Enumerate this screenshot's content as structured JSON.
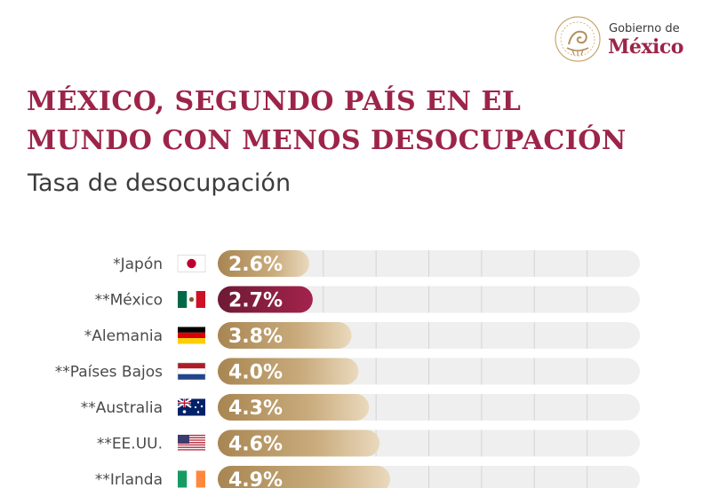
{
  "brand": {
    "line1": "Gobierno de",
    "line2": "México",
    "seal_text": "ESTADOS UNIDOS MEXICANOS",
    "primary_color": "#9d2449",
    "gold_color": "#b38e5d"
  },
  "title_lines": [
    "MÉXICO, SEGUNDO PAÍS EN EL",
    "MUNDO CON MENOS DESOCUPACIÓN"
  ],
  "chart_data": {
    "type": "bar",
    "orientation": "horizontal",
    "title": "Tasa de desocupación",
    "unit": "%",
    "categories": [
      "*Japón",
      "**México",
      "*Alemania",
      "**Países Bajos",
      "**Australia",
      "**EE.UU.",
      "**Irlanda"
    ],
    "values": [
      2.6,
      2.7,
      3.8,
      4.0,
      4.3,
      4.6,
      4.9
    ],
    "value_labels": [
      "2.6%",
      "2.7%",
      "3.8%",
      "4.0%",
      "4.3%",
      "4.6%",
      "4.9%"
    ],
    "flags": [
      "japan-flag-icon",
      "mexico-flag-icon",
      "germany-flag-icon",
      "netherlands-flag-icon",
      "australia-flag-icon",
      "usa-flag-icon",
      "ireland-flag-icon"
    ],
    "highlight": "**México",
    "highlight_color": "#9d2449",
    "bar_color": "#b38e5d",
    "xlim": [
      0,
      12
    ],
    "grid": true
  }
}
